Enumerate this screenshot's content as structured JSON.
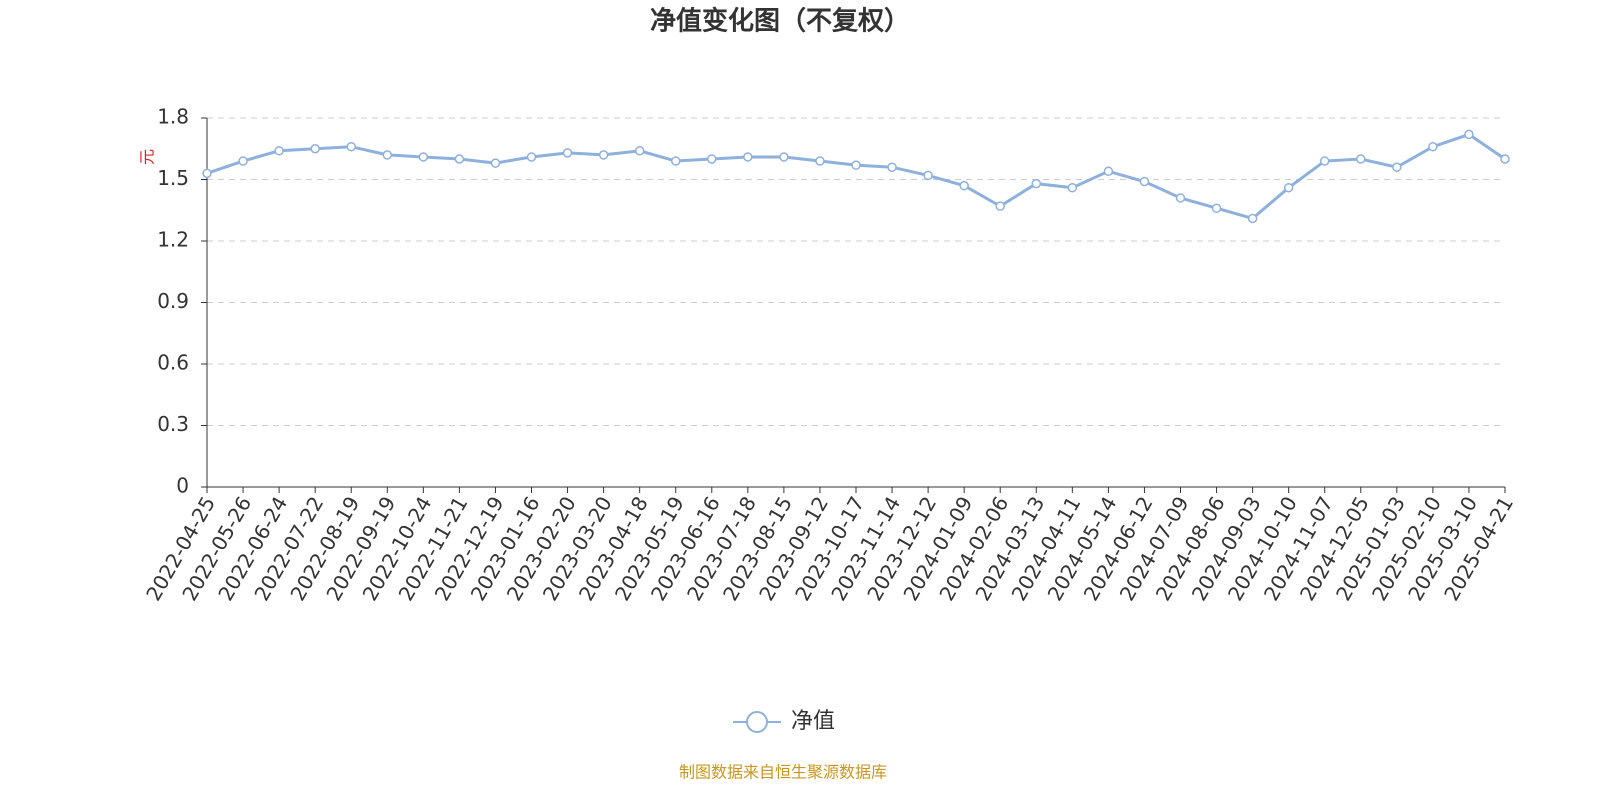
{
  "chart_data": {
    "type": "line",
    "title": "净值变化图（不复权）",
    "y_label": "元",
    "source": "制图数据来自恒生聚源数据库",
    "categories": [
      "2022-04-25",
      "2022-05-26",
      "2022-06-24",
      "2022-07-22",
      "2022-08-19",
      "2022-09-19",
      "2022-10-24",
      "2022-11-21",
      "2022-12-19",
      "2023-01-16",
      "2023-02-20",
      "2023-03-20",
      "2023-04-18",
      "2023-05-19",
      "2023-06-16",
      "2023-07-18",
      "2023-08-15",
      "2023-09-12",
      "2023-10-17",
      "2023-11-14",
      "2023-12-12",
      "2024-01-09",
      "2024-02-06",
      "2024-03-13",
      "2024-04-11",
      "2024-05-14",
      "2024-06-12",
      "2024-07-09",
      "2024-08-06",
      "2024-09-03",
      "2024-10-10",
      "2024-11-07",
      "2024-12-05",
      "2025-01-03",
      "2025-02-10",
      "2025-03-10",
      "2025-04-21"
    ],
    "series": [
      {
        "name": "净值",
        "color": "#8eb0dc",
        "values": [
          1.53,
          1.59,
          1.64,
          1.65,
          1.66,
          1.62,
          1.61,
          1.6,
          1.58,
          1.61,
          1.63,
          1.62,
          1.64,
          1.59,
          1.6,
          1.61,
          1.61,
          1.59,
          1.57,
          1.56,
          1.52,
          1.47,
          1.37,
          1.48,
          1.46,
          1.54,
          1.49,
          1.41,
          1.36,
          1.31,
          1.46,
          1.59,
          1.6,
          1.56,
          1.66,
          1.72,
          1.6
        ]
      }
    ],
    "ylim": [
      0,
      1.8
    ],
    "yticks": [
      0,
      0.3,
      0.6,
      0.9,
      1.2,
      1.5,
      1.8
    ],
    "grid": true,
    "legend": "bottom"
  }
}
